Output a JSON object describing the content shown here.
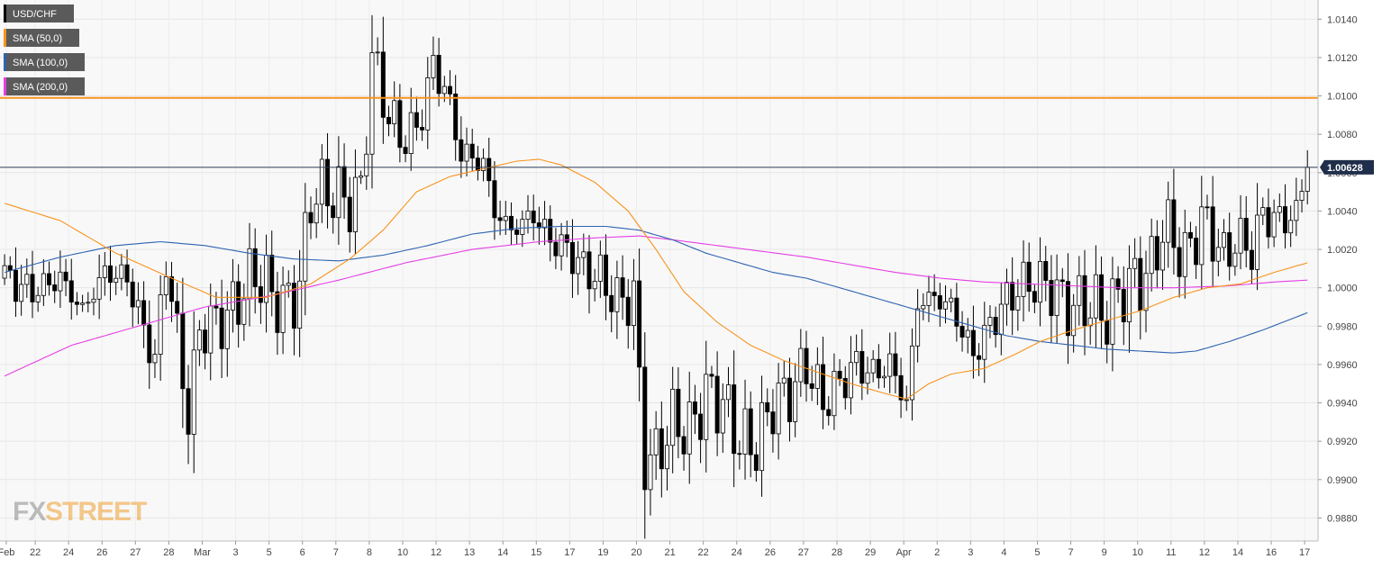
{
  "chart_data": {
    "type": "candlestick",
    "symbol": "USD/CHF",
    "legend": [
      {
        "name": "USD/CHF",
        "color": "#000000"
      },
      {
        "name": "SMA (50,0)",
        "color": "#f7931e"
      },
      {
        "name": "SMA (100,0)",
        "color": "#2e63b0"
      },
      {
        "name": "SMA (200,0)",
        "color": "#e53ee5"
      }
    ],
    "y_axis": {
      "ylim": [
        0.9868,
        1.015
      ],
      "ticks": [
        "1.0140",
        "1.0120",
        "1.0100",
        "1.0080",
        "1.0060",
        "1.0040",
        "1.0020",
        "1.0000",
        "0.9980",
        "0.9960",
        "0.9940",
        "0.9920",
        "0.9900",
        "0.9880"
      ]
    },
    "x_axis": {
      "labels": [
        {
          "label": "Feb",
          "pos": 0.8
        },
        {
          "label": "22",
          "pos": 6
        },
        {
          "label": "24",
          "pos": 12
        },
        {
          "label": "26",
          "pos": 18
        },
        {
          "label": "27",
          "pos": 24
        },
        {
          "label": "28",
          "pos": 30
        },
        {
          "label": "Mar",
          "pos": 36
        },
        {
          "label": "3",
          "pos": 42
        },
        {
          "label": "5",
          "pos": 48
        },
        {
          "label": "6",
          "pos": 54
        },
        {
          "label": "7",
          "pos": 60
        },
        {
          "label": "8",
          "pos": 66
        },
        {
          "label": "10",
          "pos": 72
        },
        {
          "label": "12",
          "pos": 78
        },
        {
          "label": "13",
          "pos": 84
        },
        {
          "label": "14",
          "pos": 90
        },
        {
          "label": "15",
          "pos": 96
        },
        {
          "label": "17",
          "pos": 102
        },
        {
          "label": "19",
          "pos": 108
        },
        {
          "label": "20",
          "pos": 114
        },
        {
          "label": "21",
          "pos": 120
        },
        {
          "label": "22",
          "pos": 126
        },
        {
          "label": "24",
          "pos": 132
        },
        {
          "label": "26",
          "pos": 138
        },
        {
          "label": "27",
          "pos": 144
        },
        {
          "label": "28",
          "pos": 150
        },
        {
          "label": "29",
          "pos": 156
        },
        {
          "label": "Apr",
          "pos": 162
        },
        {
          "label": "2",
          "pos": 168
        },
        {
          "label": "3",
          "pos": 174
        },
        {
          "label": "4",
          "pos": 180
        },
        {
          "label": "5",
          "pos": 186
        },
        {
          "label": "7",
          "pos": 192
        },
        {
          "label": "9",
          "pos": 198
        },
        {
          "label": "10",
          "pos": 204
        },
        {
          "label": "11",
          "pos": 210
        },
        {
          "label": "12",
          "pos": 216
        },
        {
          "label": "14",
          "pos": 222
        },
        {
          "label": "16",
          "pos": 228
        },
        {
          "label": "17",
          "pos": 234
        }
      ]
    },
    "horizontal_lines": [
      {
        "value": 1.0099,
        "color": "#f7931e",
        "role": "resistance"
      },
      {
        "value": 1.00628,
        "color": "#2b3a55",
        "role": "current-price"
      }
    ],
    "price_label": {
      "text": "1.00628",
      "value": 1.00628
    },
    "anchors": [
      [
        0,
        1.0005
      ],
      [
        5,
        0.9998
      ],
      [
        10,
        1.0005
      ],
      [
        14,
        0.9988
      ],
      [
        18,
        1.0008
      ],
      [
        22,
        1.0005
      ],
      [
        25,
        0.9978
      ],
      [
        27,
        0.9962
      ],
      [
        29,
        1.0015
      ],
      [
        31,
        0.9975
      ],
      [
        33,
        0.9932
      ],
      [
        35,
        0.9978
      ],
      [
        40,
        0.9985
      ],
      [
        45,
        1.0008
      ],
      [
        50,
        0.999
      ],
      [
        53,
        1.0
      ],
      [
        55,
        1.0048
      ],
      [
        58,
        1.005
      ],
      [
        62,
        1.0045
      ],
      [
        64,
        1.005
      ],
      [
        66,
        1.012
      ],
      [
        69,
        1.009
      ],
      [
        71,
        1.0078
      ],
      [
        74,
        1.0082
      ],
      [
        77,
        1.0115
      ],
      [
        79,
        1.0105
      ],
      [
        82,
        1.007
      ],
      [
        86,
        1.0065
      ],
      [
        88,
        1.004
      ],
      [
        91,
        1.003
      ],
      [
        95,
        1.0038
      ],
      [
        98,
        1.0025
      ],
      [
        101,
        1.002
      ],
      [
        104,
        1.001
      ],
      [
        107,
        1.0005
      ],
      [
        110,
        0.9993
      ],
      [
        113,
        0.9995
      ],
      [
        114,
        0.995
      ],
      [
        115,
        0.991
      ],
      [
        117,
        0.9912
      ],
      [
        120,
        0.993
      ],
      [
        123,
        0.9925
      ],
      [
        126,
        0.9945
      ],
      [
        129,
        0.994
      ],
      [
        132,
        0.992
      ],
      [
        135,
        0.9918
      ],
      [
        138,
        0.994
      ],
      [
        141,
        0.9945
      ],
      [
        144,
        0.996
      ],
      [
        147,
        0.994
      ],
      [
        150,
        0.995
      ],
      [
        153,
        0.996
      ],
      [
        156,
        0.9955
      ],
      [
        159,
        0.996
      ],
      [
        162,
        0.994
      ],
      [
        164,
        0.9992
      ],
      [
        167,
        0.9995
      ],
      [
        170,
        0.999
      ],
      [
        174,
        0.9965
      ],
      [
        176,
        0.9975
      ],
      [
        179,
        0.999
      ],
      [
        182,
        1.0
      ],
      [
        185,
        1.0003
      ],
      [
        188,
        1.0
      ],
      [
        191,
        0.999
      ],
      [
        195,
        0.9992
      ],
      [
        198,
        0.9985
      ],
      [
        201,
        1.0
      ],
      [
        204,
        1.0005
      ],
      [
        206,
        1.001
      ],
      [
        208,
        1.0032
      ],
      [
        210,
        1.0025
      ],
      [
        212,
        1.0015
      ],
      [
        215,
        1.0035
      ],
      [
        217,
        1.0028
      ],
      [
        219,
        1.0015
      ],
      [
        221,
        1.0025
      ],
      [
        224,
        1.002
      ],
      [
        226,
        1.0038
      ],
      [
        229,
        1.0035
      ],
      [
        232,
        1.0038
      ],
      [
        233,
        1.0053
      ],
      [
        234,
        1.0063
      ]
    ],
    "sma_50": [
      [
        0,
        1.0044
      ],
      [
        10,
        1.0035
      ],
      [
        20,
        1.0018
      ],
      [
        30,
        1.0005
      ],
      [
        38,
        0.9995
      ],
      [
        47,
        0.9995
      ],
      [
        55,
        1.0002
      ],
      [
        62,
        1.0015
      ],
      [
        68,
        1.003
      ],
      [
        74,
        1.005
      ],
      [
        80,
        1.0058
      ],
      [
        86,
        1.0062
      ],
      [
        92,
        1.0066
      ],
      [
        96,
        1.0067
      ],
      [
        100,
        1.0064
      ],
      [
        106,
        1.0055
      ],
      [
        112,
        1.004
      ],
      [
        117,
        1.002
      ],
      [
        122,
        0.9998
      ],
      [
        128,
        0.9982
      ],
      [
        134,
        0.997
      ],
      [
        140,
        0.9962
      ],
      [
        146,
        0.9956
      ],
      [
        152,
        0.995
      ],
      [
        158,
        0.9945
      ],
      [
        162,
        0.9942
      ],
      [
        166,
        0.995
      ],
      [
        170,
        0.9955
      ],
      [
        176,
        0.9958
      ],
      [
        182,
        0.9966
      ],
      [
        186,
        0.9972
      ],
      [
        192,
        0.9978
      ],
      [
        198,
        0.9983
      ],
      [
        204,
        0.9988
      ],
      [
        210,
        0.9995
      ],
      [
        216,
        1.0
      ],
      [
        222,
        1.0002
      ],
      [
        228,
        1.0008
      ],
      [
        234,
        1.0013
      ]
    ],
    "sma_100": [
      [
        0,
        1.0008
      ],
      [
        10,
        1.0016
      ],
      [
        20,
        1.0022
      ],
      [
        28,
        1.0024
      ],
      [
        36,
        1.0022
      ],
      [
        44,
        1.0018
      ],
      [
        52,
        1.0015
      ],
      [
        60,
        1.0014
      ],
      [
        68,
        1.0017
      ],
      [
        76,
        1.0022
      ],
      [
        84,
        1.0028
      ],
      [
        92,
        1.0031
      ],
      [
        100,
        1.0032
      ],
      [
        108,
        1.0032
      ],
      [
        114,
        1.003
      ],
      [
        120,
        1.0025
      ],
      [
        126,
        1.0018
      ],
      [
        132,
        1.0013
      ],
      [
        138,
        1.0008
      ],
      [
        144,
        1.0005
      ],
      [
        150,
        1.0
      ],
      [
        156,
        0.9995
      ],
      [
        162,
        0.999
      ],
      [
        168,
        0.9985
      ],
      [
        174,
        0.998
      ],
      [
        180,
        0.9975
      ],
      [
        186,
        0.9972
      ],
      [
        192,
        0.997
      ],
      [
        198,
        0.9968
      ],
      [
        204,
        0.9967
      ],
      [
        210,
        0.9966
      ],
      [
        214,
        0.9967
      ],
      [
        220,
        0.9972
      ],
      [
        226,
        0.9978
      ],
      [
        234,
        0.9987
      ]
    ],
    "sma_200": [
      [
        0,
        0.9954
      ],
      [
        12,
        0.997
      ],
      [
        24,
        0.998
      ],
      [
        36,
        0.999
      ],
      [
        48,
        0.9996
      ],
      [
        60,
        1.0004
      ],
      [
        72,
        1.0013
      ],
      [
        84,
        1.002
      ],
      [
        96,
        1.0024
      ],
      [
        106,
        1.0026
      ],
      [
        114,
        1.0027
      ],
      [
        120,
        1.0025
      ],
      [
        128,
        1.0022
      ],
      [
        136,
        1.0019
      ],
      [
        144,
        1.0016
      ],
      [
        152,
        1.0012
      ],
      [
        160,
        1.0008
      ],
      [
        168,
        1.0005
      ],
      [
        176,
        1.0003
      ],
      [
        184,
        1.0002
      ],
      [
        192,
        1.0001
      ],
      [
        200,
        1.0
      ],
      [
        210,
        1.0
      ],
      [
        220,
        1.0001
      ],
      [
        228,
        1.0003
      ],
      [
        234,
        1.0004
      ]
    ]
  },
  "logo": {
    "part1": "FX",
    "part2": "STREET"
  }
}
